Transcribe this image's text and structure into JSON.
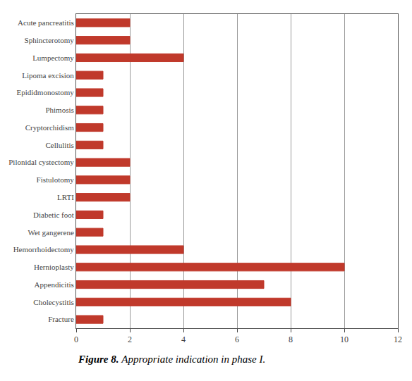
{
  "chart_data": {
    "type": "bar",
    "orientation": "horizontal",
    "categories": [
      "Fracture",
      "Cholecystitis",
      "Appendicitis",
      "Hernioplasty",
      "Hemorrhoidectomy",
      "Wet gangerene",
      "Diabetic foot",
      "LRTI",
      "Fistulotomy",
      "Pilonidal cystectomy",
      "Cellulitis",
      "Cryptorchidism",
      "Phimosis",
      "Epididmonostomy",
      "Lipoma excision",
      "Lumpectomy",
      "Sphincterotomy",
      "Acute pancreatitis"
    ],
    "values": [
      1,
      8,
      7,
      10,
      4,
      1,
      1,
      2,
      2,
      2,
      1,
      1,
      1,
      1,
      1,
      4,
      2,
      2
    ],
    "color": "#c0392b",
    "xlim": [
      0,
      12
    ],
    "xticks": [
      0,
      2,
      4,
      6,
      8,
      10,
      12
    ],
    "grid": true,
    "annotations": [
      "Figure 8.",
      "Appropriate indication in phase I."
    ]
  }
}
